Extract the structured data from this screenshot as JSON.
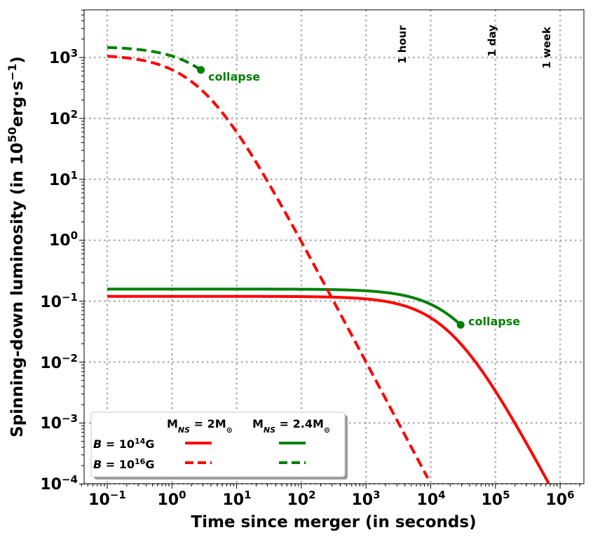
{
  "chart_data": {
    "type": "line",
    "xlabel": "Time since merger (in seconds)",
    "ylabel_main": "Spinning-down luminosity (in 10",
    "ylabel_exp": "50",
    "ylabel_unit_a": "erg·s",
    "ylabel_unit_exp": "−1",
    "ylabel_close": ")",
    "x_scale": "log",
    "y_scale": "log",
    "xlim": [
      0.035,
      2000000
    ],
    "ylim": [
      0.0001,
      6000
    ],
    "grid": true,
    "x_ticks": [
      {
        "value": 0.1,
        "base": "10",
        "exp": "−1"
      },
      {
        "value": 1,
        "base": "10",
        "exp": "0"
      },
      {
        "value": 10,
        "base": "10",
        "exp": "1"
      },
      {
        "value": 100,
        "base": "10",
        "exp": "2"
      },
      {
        "value": 1000,
        "base": "10",
        "exp": "3"
      },
      {
        "value": 10000,
        "base": "10",
        "exp": "4"
      },
      {
        "value": 100000,
        "base": "10",
        "exp": "5"
      },
      {
        "value": 1000000,
        "base": "10",
        "exp": "6"
      }
    ],
    "y_ticks": [
      {
        "value": 0.0001,
        "base": "10",
        "exp": "−4"
      },
      {
        "value": 0.001,
        "base": "10",
        "exp": "−3"
      },
      {
        "value": 0.01,
        "base": "10",
        "exp": "−2"
      },
      {
        "value": 0.1,
        "base": "10",
        "exp": "−1"
      },
      {
        "value": 1,
        "base": "10",
        "exp": "0"
      },
      {
        "value": 10,
        "base": "10",
        "exp": "1"
      },
      {
        "value": 100,
        "base": "10",
        "exp": "2"
      },
      {
        "value": 1000,
        "base": "10",
        "exp": "3"
      }
    ],
    "series": [
      {
        "key": "b14_m2",
        "color": "#ff0000",
        "dash": false,
        "L0": 0.12,
        "tau": 20000,
        "t_start": 0.1,
        "t_end": 2000000
      },
      {
        "key": "b14_m24",
        "color": "#008000",
        "dash": false,
        "L0": 0.158,
        "tau": 30000,
        "t_start": 0.1,
        "t_end": 29000,
        "collapse_marker": true
      },
      {
        "key": "b16_m2",
        "color": "#ff0000",
        "dash": true,
        "L0": 1120,
        "tau": 3.0,
        "t_start": 0.1,
        "t_end": 9000
      },
      {
        "key": "b16_m24",
        "color": "#008000",
        "dash": true,
        "L0": 1520,
        "tau": 5.0,
        "t_start": 0.1,
        "t_end": 2.8,
        "collapse_marker": true
      }
    ],
    "annotations": {
      "collapse_label": "collapse",
      "hour": {
        "label": "1 hour",
        "x": 3600
      },
      "day": {
        "label": "1 day",
        "x": 86400
      },
      "week": {
        "label": "1 week",
        "x": 604800
      }
    },
    "legend": {
      "placement": "lower-left",
      "col1_header_main": "M",
      "col1_header_sub": "NS",
      "col1_header_rest": " = 2M",
      "col1_header_sym": "⊙",
      "col2_header_main": "M",
      "col2_header_sub": "NS",
      "col2_header_rest": " = 2.4M",
      "col2_header_sym": "⊙",
      "row1_label_a": "B",
      "row1_label_b": " = 10",
      "row1_label_exp": "14",
      "row1_label_unit": "G",
      "row2_label_a": "B",
      "row2_label_b": " = 10",
      "row2_label_exp": "16",
      "row2_label_unit": "G"
    }
  }
}
